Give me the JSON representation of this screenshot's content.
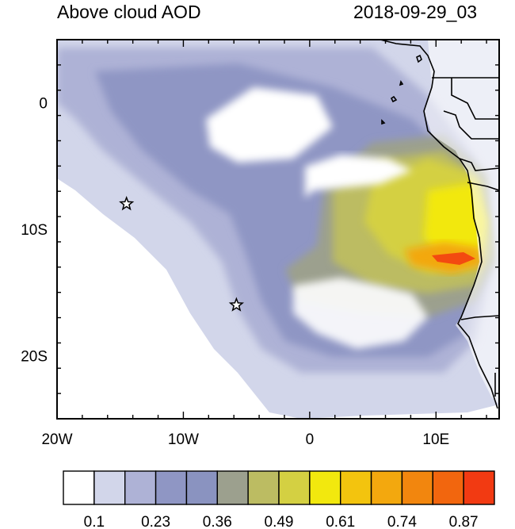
{
  "title": "Above cloud AOD",
  "timestamp": "2018-09-29_03",
  "map": {
    "lon_range": [
      -20,
      15
    ],
    "lat_range": [
      -25,
      5
    ],
    "x_tick_labels": [
      {
        "lon": -20,
        "label": "20W"
      },
      {
        "lon": -10,
        "label": "10W"
      },
      {
        "lon": 0,
        "label": "0"
      },
      {
        "lon": 10,
        "label": "10E"
      }
    ],
    "y_tick_labels": [
      {
        "lat": 0,
        "label": "0"
      },
      {
        "lat": -10,
        "label": "10S"
      },
      {
        "lat": -20,
        "label": "20S"
      }
    ],
    "markers": [
      {
        "type": "star",
        "lon": -14.5,
        "lat": -8.0
      },
      {
        "type": "star",
        "lon": -5.8,
        "lat": -16.0
      }
    ]
  },
  "colorbar": {
    "colors": [
      "#ffffff",
      "#d2d6ea",
      "#aeb2d6",
      "#8f96c4",
      "#8a93c0",
      "#9ca08e",
      "#bcbc62",
      "#d4d042",
      "#f2e80e",
      "#f3c40e",
      "#f3a80e",
      "#f2860e",
      "#f2660e",
      "#f23a12"
    ],
    "labels": [
      "0.1",
      "0.23",
      "0.36",
      "0.49",
      "0.61",
      "0.74",
      "0.87"
    ]
  }
}
